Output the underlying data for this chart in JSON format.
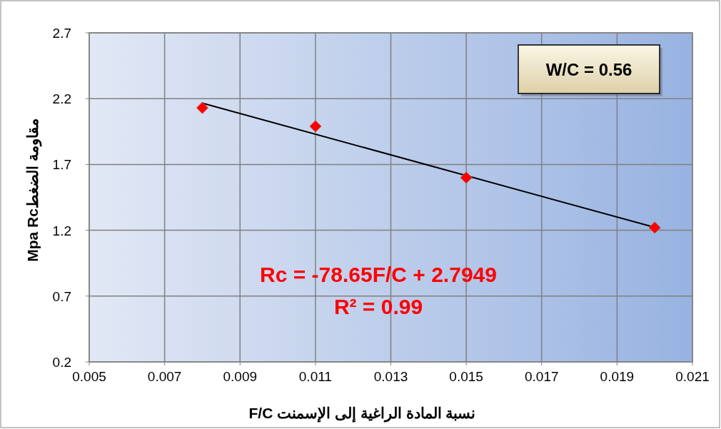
{
  "chart_data": {
    "type": "scatter",
    "xlabel": "F/C نسبة المادة الراغية إلى الإسمنت",
    "ylabel": "Mpa  Rcمقاومة الضغط",
    "annotations": [
      "W/C = 0.56",
      "Rc = -78.65F/C + 2.7949",
      "R² = 0.99"
    ],
    "xlim": [
      0.005,
      0.021
    ],
    "ylim": [
      0.2,
      2.7
    ],
    "xticks": [
      0.005,
      0.007,
      0.009,
      0.011,
      0.013,
      0.015,
      0.017,
      0.019,
      0.021
    ],
    "yticks": [
      0.2,
      0.7,
      1.2,
      1.7,
      2.2,
      2.7
    ],
    "grid": true,
    "marker": "diamond",
    "series": [
      {
        "color": "#ff0000",
        "x": [
          0.008,
          0.011,
          0.015,
          0.02
        ],
        "values": [
          2.13,
          1.99,
          1.6,
          1.22
        ]
      },
      {
        "type": "line",
        "color": "#000000",
        "marker": "none",
        "x": [
          0.008,
          0.02
        ],
        "values": [
          2.166,
          1.222
        ]
      }
    ]
  }
}
